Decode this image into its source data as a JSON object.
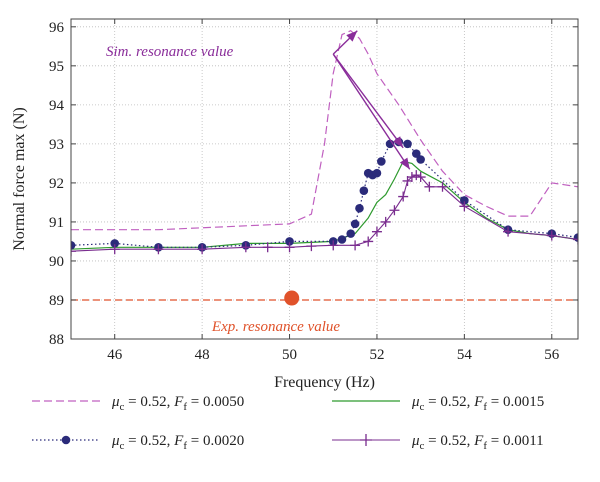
{
  "chart_data": {
    "type": "line",
    "xlabel": "Frequency (Hz)",
    "ylabel": "Normal force max (N)",
    "xlim": [
      45,
      56.6
    ],
    "ylim": [
      88,
      96.2
    ],
    "xticks": [
      46,
      48,
      50,
      52,
      54,
      56
    ],
    "yticks": [
      88,
      89,
      90,
      91,
      92,
      93,
      94,
      95,
      96
    ],
    "grid": true,
    "legend_position": "bottom",
    "colors": {
      "series1": "#c060c0",
      "series2": "#2b2b7a",
      "series3": "#2e9a2e",
      "series4": "#7a2d8f",
      "experiment": "#e0522a",
      "sim_annotation": "#8a2d9a"
    },
    "series": [
      {
        "name": "μc = 0.52, Ff = 0.0050",
        "legend_mu": "μ",
        "legend_mu_sub": "c",
        "legend_rest": " = 0.52, ",
        "legend_F": "F",
        "legend_F_sub": "f",
        "legend_val": " = 0.0050",
        "style": "dashed",
        "x": [
          45,
          46,
          47,
          48,
          49,
          50,
          50.5,
          50.8,
          51.0,
          51.2,
          51.4,
          51.6,
          51.8,
          52.0,
          52.5,
          53.0,
          53.5,
          54.0,
          54.5,
          55.0,
          55.5,
          56.0,
          56.6
        ],
        "y": [
          90.8,
          90.8,
          90.8,
          90.85,
          90.9,
          90.95,
          91.2,
          93.0,
          94.8,
          95.8,
          95.9,
          95.7,
          95.3,
          94.8,
          94.0,
          93.1,
          92.3,
          91.7,
          91.4,
          91.15,
          91.15,
          92.0,
          91.9
        ]
      },
      {
        "name": "μc = 0.52, Ff = 0.0020",
        "legend_mu": "μ",
        "legend_mu_sub": "c",
        "legend_rest": " = 0.52, ",
        "legend_F": "F",
        "legend_F_sub": "f",
        "legend_val": " = 0.0020",
        "style": "dotted-circles",
        "x": [
          45,
          46,
          47,
          48,
          49,
          50,
          51,
          51.2,
          51.4,
          51.5,
          51.6,
          51.7,
          51.8,
          51.9,
          52.0,
          52.1,
          52.3,
          52.5,
          52.7,
          52.9,
          53.0,
          54.0,
          55.0,
          56.0,
          56.6
        ],
        "y": [
          90.4,
          90.45,
          90.35,
          90.35,
          90.4,
          90.5,
          90.5,
          90.55,
          90.7,
          90.95,
          91.35,
          91.8,
          92.25,
          92.2,
          92.25,
          92.55,
          93.0,
          93.05,
          93.0,
          92.75,
          92.6,
          91.55,
          90.8,
          90.7,
          90.6
        ]
      },
      {
        "name": "μc = 0.52, Ff = 0.0015",
        "legend_mu": "μ",
        "legend_mu_sub": "c",
        "legend_rest": " = 0.52, ",
        "legend_F": "F",
        "legend_F_sub": "f",
        "legend_val": " = 0.0015",
        "style": "solid",
        "x": [
          45,
          46,
          47,
          48,
          49,
          50,
          51,
          51.5,
          51.8,
          52.0,
          52.2,
          52.4,
          52.6,
          52.8,
          53.0,
          53.5,
          54.0,
          54.5,
          55.0,
          55.5,
          56.0,
          56.6
        ],
        "y": [
          90.3,
          90.35,
          90.35,
          90.35,
          90.45,
          90.45,
          90.5,
          90.7,
          91.1,
          91.5,
          91.7,
          92.1,
          92.55,
          92.5,
          92.3,
          92.0,
          91.5,
          91.1,
          90.8,
          90.7,
          90.65,
          90.55
        ]
      },
      {
        "name": "μc = 0.52, Ff = 0.0011",
        "legend_mu": "μ",
        "legend_mu_sub": "c",
        "legend_rest": " = 0.52, ",
        "legend_F": "F",
        "legend_F_sub": "f",
        "legend_val": " = 0.0011",
        "style": "solid-plus",
        "x": [
          45,
          46,
          47,
          48,
          49,
          49.5,
          50,
          50.5,
          51,
          51.5,
          51.8,
          52.0,
          52.2,
          52.4,
          52.6,
          52.7,
          52.8,
          52.9,
          53.0,
          53.2,
          53.5,
          54.0,
          55.0,
          56.0,
          56.6
        ],
        "y": [
          90.25,
          90.3,
          90.3,
          90.3,
          90.35,
          90.35,
          90.35,
          90.38,
          90.4,
          90.4,
          90.5,
          90.75,
          91.0,
          91.3,
          91.65,
          92.05,
          92.15,
          92.2,
          92.15,
          91.9,
          91.9,
          91.4,
          90.75,
          90.65,
          90.55
        ]
      }
    ],
    "experiment": {
      "line_y": 89,
      "point": [
        50.05,
        89.05
      ]
    },
    "annotations": {
      "sim": {
        "text": "Sim. resonance value",
        "anchor": [
          51.0,
          95.3
        ],
        "arrow_targets": [
          [
            51.55,
            95.9
          ],
          [
            52.6,
            92.9
          ],
          [
            52.75,
            92.35
          ]
        ]
      },
      "exp": {
        "text": "Exp. resonance value",
        "anchor": [
          50.05,
          88.3
        ]
      }
    }
  }
}
